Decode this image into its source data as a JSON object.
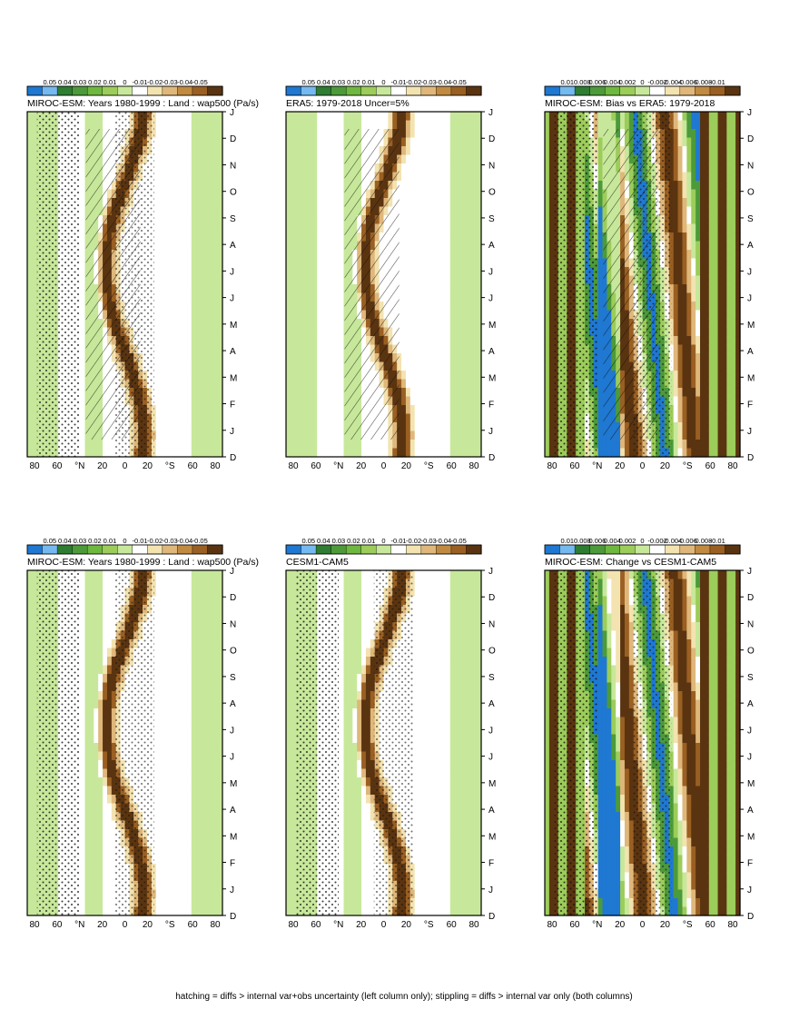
{
  "figure": {
    "caption": "hatching = diffs > internal var+obs uncertainty (left column only); stippling = diffs > internal var only (both columns)",
    "palette": {
      "wet_strong": "#1f78d1",
      "wet_light": "#74b9ef",
      "green_dark": "#2e7d32",
      "green_light": "#c7e89a",
      "neutral": "#ffffff",
      "tan_light": "#f3e3b0",
      "brown_dark": "#5a3410"
    }
  },
  "chart_data": [
    {
      "type": "heatmap",
      "title": "MIROC-ESM: Years 1980-1999 : Land : wap500 (Pa/s)",
      "x": [
        "D",
        "J",
        "F",
        "M",
        "A",
        "M",
        "J",
        "J",
        "A",
        "S",
        "O",
        "N",
        "D",
        "J"
      ],
      "y_ticks": [
        "80",
        "60",
        "°N",
        "20",
        "0",
        "20",
        "°S",
        "60",
        "80"
      ],
      "colorbar": [
        "0.05",
        "0.04",
        "0.03",
        "0.02",
        "0.01",
        "0",
        "-0.01",
        "-0.02",
        "-0.03",
        "-0.04",
        "-0.05"
      ],
      "xlabel": "",
      "ylabel": "",
      "hatching": true,
      "stippling": true
    },
    {
      "type": "heatmap",
      "title": "MIROC-ESM: Years 1980-1999 : Land : wap500 (Pa/s)",
      "x": [
        "D",
        "J",
        "F",
        "M",
        "A",
        "M",
        "J",
        "J",
        "A",
        "S",
        "O",
        "N",
        "D",
        "J"
      ],
      "y_ticks": [
        "80",
        "60",
        "°N",
        "20",
        "0",
        "20",
        "°S",
        "60",
        "80"
      ],
      "colorbar": [
        "0.05",
        "0.04",
        "0.03",
        "0.02",
        "0.01",
        "0",
        "-0.01",
        "-0.02",
        "-0.03",
        "-0.04",
        "-0.05"
      ],
      "xlabel": "",
      "ylabel": "",
      "hatching": false,
      "stippling": true
    },
    {
      "type": "heatmap",
      "title": "ERA5: 1979-2018 Uncer=5%",
      "x": [
        "D",
        "J",
        "F",
        "M",
        "A",
        "M",
        "J",
        "J",
        "A",
        "S",
        "O",
        "N",
        "D",
        "J"
      ],
      "y_ticks": [
        "80",
        "60",
        "°N",
        "20",
        "0",
        "20",
        "°S",
        "60",
        "80"
      ],
      "colorbar": [
        "0.05",
        "0.04",
        "0.03",
        "0.02",
        "0.01",
        "0",
        "-0.01",
        "-0.02",
        "-0.03",
        "-0.04",
        "-0.05"
      ],
      "xlabel": "",
      "ylabel": "",
      "hatching": true,
      "stippling": false
    },
    {
      "type": "heatmap",
      "title": "CESM1-CAM5",
      "x": [
        "D",
        "J",
        "F",
        "M",
        "A",
        "M",
        "J",
        "J",
        "A",
        "S",
        "O",
        "N",
        "D",
        "J"
      ],
      "y_ticks": [
        "80",
        "60",
        "°N",
        "20",
        "0",
        "20",
        "°S",
        "60",
        "80"
      ],
      "colorbar": [
        "0.05",
        "0.04",
        "0.03",
        "0.02",
        "0.01",
        "0",
        "-0.01",
        "-0.02",
        "-0.03",
        "-0.04",
        "-0.05"
      ],
      "xlabel": "",
      "ylabel": "",
      "hatching": false,
      "stippling": true
    },
    {
      "type": "heatmap",
      "title": "MIROC-ESM: Bias vs ERA5: 1979-2018",
      "x": [
        "D",
        "J",
        "F",
        "M",
        "A",
        "M",
        "J",
        "J",
        "A",
        "S",
        "O",
        "N",
        "D",
        "J"
      ],
      "y_ticks": [
        "80",
        "60",
        "°N",
        "20",
        "0",
        "20",
        "°S",
        "60",
        "80"
      ],
      "colorbar": [
        "0.01",
        "0.008",
        "0.006",
        "0.004",
        "0.002",
        "0",
        "-0.002",
        "-0.004",
        "-0.006",
        "-0.008",
        "-0.01"
      ],
      "xlabel": "",
      "ylabel": "",
      "hatching": true,
      "stippling": true
    },
    {
      "type": "heatmap",
      "title": "MIROC-ESM: Change vs CESM1-CAM5",
      "x": [
        "D",
        "J",
        "F",
        "M",
        "A",
        "M",
        "J",
        "J",
        "A",
        "S",
        "O",
        "N",
        "D",
        "J"
      ],
      "y_ticks": [
        "80",
        "60",
        "°N",
        "20",
        "0",
        "20",
        "°S",
        "60",
        "80"
      ],
      "colorbar": [
        "0.01",
        "0.008",
        "0.006",
        "0.004",
        "0.002",
        "0",
        "-0.002",
        "-0.004",
        "-0.006",
        "-0.008",
        "-0.01"
      ],
      "xlabel": "",
      "ylabel": "",
      "hatching": false,
      "stippling": true
    }
  ]
}
